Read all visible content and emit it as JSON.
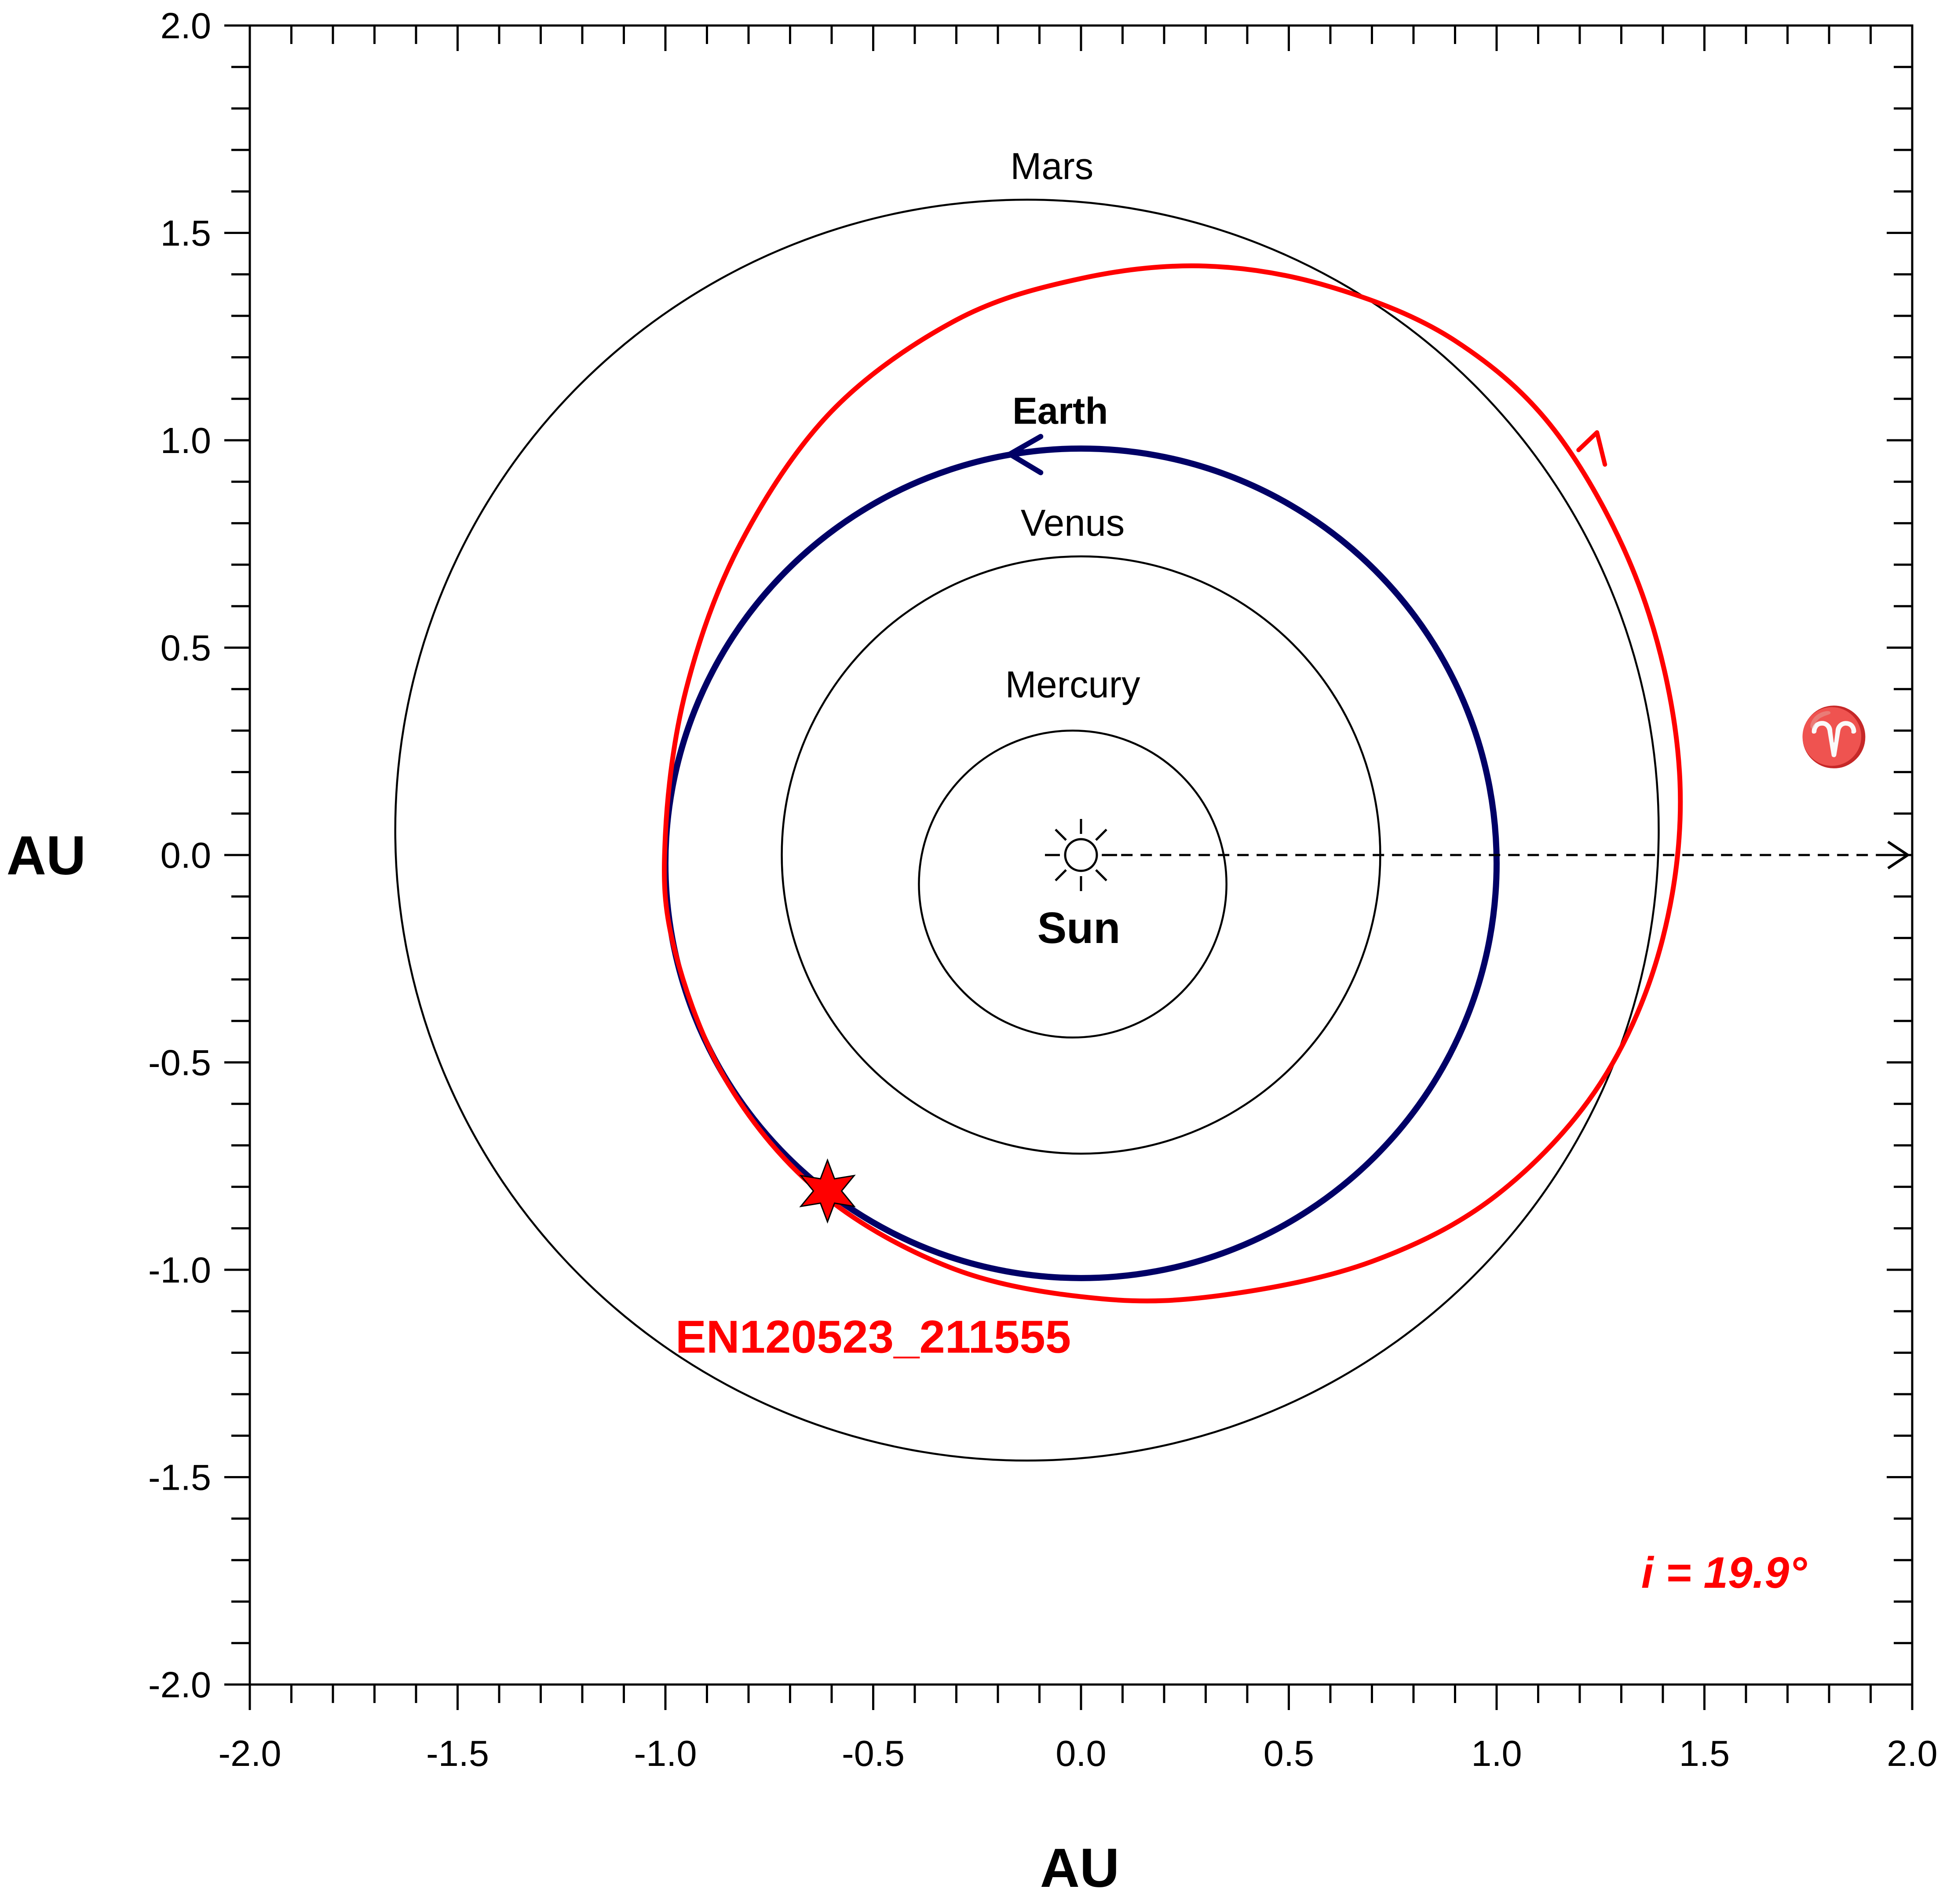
{
  "chart_data": {
    "type": "orbit-diagram",
    "xlabel": "AU",
    "ylabel": "AU",
    "xlim": [
      -2.0,
      2.0
    ],
    "ylim": [
      -2.0,
      2.0
    ],
    "x_ticks": [
      "-2.0",
      "-1.5",
      "-1.0",
      "-0.5",
      "0.0",
      "0.5",
      "1.0",
      "1.5",
      "2.0"
    ],
    "y_ticks": [
      "2.0",
      "1.5",
      "1.0",
      "0.5",
      "0.0",
      "-0.5",
      "-1.0",
      "-1.5",
      "-2.0"
    ],
    "minor_tick_step": 0.1,
    "sun": {
      "label": "Sun",
      "x": 0.0,
      "y": 0.0
    },
    "orbits": [
      {
        "name": "Mercury",
        "cx": -0.02,
        "cy": -0.07,
        "r": 0.37,
        "color": "#000000",
        "label_x": -0.02,
        "label_y": 0.38
      },
      {
        "name": "Venus",
        "cx": 0.0,
        "cy": 0.0,
        "r": 0.72,
        "color": "#000000",
        "label_x": -0.02,
        "label_y": 0.77
      },
      {
        "name": "Earth",
        "cx": 0.0,
        "cy": -0.02,
        "r": 1.0,
        "color": "#000066",
        "label_x": -0.05,
        "label_y": 1.04
      },
      {
        "name": "Mars",
        "cx": -0.13,
        "cy": 0.06,
        "r": 1.52,
        "color": "#000000",
        "label_x": -0.07,
        "label_y": 1.63
      }
    ],
    "meteoroid_orbit": {
      "name": "EN120523_211555",
      "color": "#ff0000",
      "points": [
        [
          -1.0,
          0.05
        ],
        [
          -0.95,
          0.4
        ],
        [
          -0.82,
          0.75
        ],
        [
          -0.6,
          1.07
        ],
        [
          -0.3,
          1.29
        ],
        [
          0.0,
          1.39
        ],
        [
          0.3,
          1.42
        ],
        [
          0.6,
          1.37
        ],
        [
          0.9,
          1.24
        ],
        [
          1.15,
          1.01
        ],
        [
          1.35,
          0.63
        ],
        [
          1.44,
          0.2
        ],
        [
          1.4,
          -0.2
        ],
        [
          1.25,
          -0.55
        ],
        [
          1.0,
          -0.82
        ],
        [
          0.7,
          -0.98
        ],
        [
          0.35,
          -1.06
        ],
        [
          0.05,
          -1.07
        ],
        [
          -0.3,
          -1.0
        ],
        [
          -0.62,
          -0.82
        ],
        [
          -0.85,
          -0.55
        ],
        [
          -0.98,
          -0.22
        ],
        [
          -1.0,
          0.05
        ]
      ],
      "label_x": -0.5,
      "label_y": -1.2
    },
    "fall_point": {
      "x": -0.61,
      "y": -0.81
    },
    "vernal_equinox": {
      "symbol": "♈",
      "y": 0.0
    },
    "inclination": "i = 19.9°",
    "colors": {
      "earth": "#000066",
      "meteoroid": "#ff0000",
      "axes": "#000000"
    }
  }
}
